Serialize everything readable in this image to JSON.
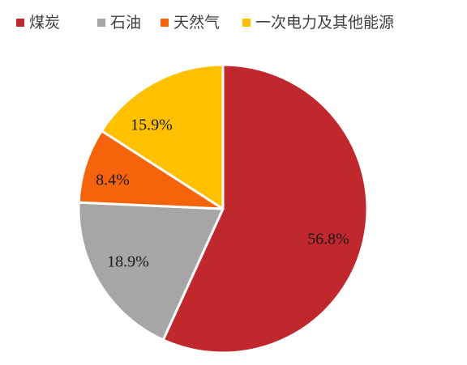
{
  "chart_data": {
    "type": "pie",
    "title": "",
    "legend_position": "top",
    "start": "12-o'clock",
    "direction": "clockwise",
    "slices": [
      {
        "name": "煤炭",
        "value": 56.8,
        "label": "56.8%",
        "color": "#c0282e"
      },
      {
        "name": "石油",
        "value": 18.9,
        "label": "18.9%",
        "color": "#a6a6a6"
      },
      {
        "name": "天然气",
        "value": 8.4,
        "label": "8.4%",
        "color": "#f5630b"
      },
      {
        "name": "一次电力及其他能源",
        "value": 15.9,
        "label": "15.9%",
        "color": "#ffc000"
      }
    ]
  }
}
